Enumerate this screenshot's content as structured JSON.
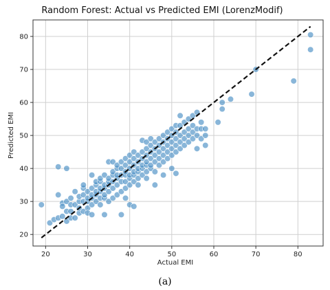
{
  "chart_data": {
    "type": "scatter",
    "title": "Random Forest: Actual vs Predicted EMI (LorenzModif)",
    "xlabel": "Actual EMI",
    "ylabel": "Predicted EMI",
    "xlim": [
      17,
      86
    ],
    "ylim": [
      16.5,
      85
    ],
    "xticks": [
      "20",
      "30",
      "40",
      "50",
      "60",
      "70",
      "80"
    ],
    "yticks": [
      "20",
      "30",
      "40",
      "50",
      "60",
      "70",
      "80"
    ],
    "grid": true,
    "reference_line": {
      "style": "dashed",
      "color": "#111111",
      "from": [
        19,
        19
      ],
      "to": [
        83,
        83
      ]
    },
    "point_color": "#4a8fc4",
    "points": [
      [
        19,
        29
      ],
      [
        21,
        23.5
      ],
      [
        22,
        24.5
      ],
      [
        23,
        25
      ],
      [
        23,
        32
      ],
      [
        23,
        40.5
      ],
      [
        24,
        25.5
      ],
      [
        24,
        29.5
      ],
      [
        24,
        28.5
      ],
      [
        25,
        24
      ],
      [
        25,
        27
      ],
      [
        25,
        30
      ],
      [
        25,
        40
      ],
      [
        26,
        25
      ],
      [
        26,
        27
      ],
      [
        26,
        29
      ],
      [
        26,
        31
      ],
      [
        27,
        25
      ],
      [
        27,
        29
      ],
      [
        27,
        33
      ],
      [
        28,
        26.5
      ],
      [
        28,
        30
      ],
      [
        28,
        31.5
      ],
      [
        28,
        28
      ],
      [
        29,
        27
      ],
      [
        29,
        30
      ],
      [
        29,
        32
      ],
      [
        29,
        34
      ],
      [
        29,
        35
      ],
      [
        30,
        28
      ],
      [
        30,
        30
      ],
      [
        30,
        31
      ],
      [
        30,
        33
      ],
      [
        30,
        26.5
      ],
      [
        31,
        29
      ],
      [
        31,
        31
      ],
      [
        31,
        32
      ],
      [
        31,
        34
      ],
      [
        31,
        38
      ],
      [
        31,
        26
      ],
      [
        32,
        30
      ],
      [
        32,
        32
      ],
      [
        32,
        33
      ],
      [
        32,
        35
      ],
      [
        32,
        36
      ],
      [
        33,
        29
      ],
      [
        33,
        31
      ],
      [
        33,
        33
      ],
      [
        33,
        34
      ],
      [
        33,
        36
      ],
      [
        33,
        37
      ],
      [
        34,
        26
      ],
      [
        34,
        31
      ],
      [
        34,
        32
      ],
      [
        34,
        34
      ],
      [
        34,
        35
      ],
      [
        34,
        38
      ],
      [
        35,
        30
      ],
      [
        35,
        33
      ],
      [
        35,
        35
      ],
      [
        35,
        36
      ],
      [
        35,
        37
      ],
      [
        35,
        42
      ],
      [
        36,
        31
      ],
      [
        36,
        34
      ],
      [
        36,
        36
      ],
      [
        36,
        38
      ],
      [
        36,
        39
      ],
      [
        36,
        42
      ],
      [
        37,
        32
      ],
      [
        37,
        35
      ],
      [
        37,
        37
      ],
      [
        37,
        38
      ],
      [
        37,
        40
      ],
      [
        37,
        41
      ],
      [
        38,
        33
      ],
      [
        38,
        36
      ],
      [
        38,
        38
      ],
      [
        38,
        40
      ],
      [
        38,
        42
      ],
      [
        38,
        26
      ],
      [
        39,
        34
      ],
      [
        39,
        36
      ],
      [
        39,
        38
      ],
      [
        39,
        39
      ],
      [
        39,
        41
      ],
      [
        39,
        43
      ],
      [
        39,
        31
      ],
      [
        40,
        35
      ],
      [
        40,
        37
      ],
      [
        40,
        38
      ],
      [
        40,
        40
      ],
      [
        40,
        42
      ],
      [
        40,
        44
      ],
      [
        40,
        29
      ],
      [
        41,
        36
      ],
      [
        41,
        38
      ],
      [
        41,
        39
      ],
      [
        41,
        41
      ],
      [
        41,
        43
      ],
      [
        41,
        45
      ],
      [
        41,
        28.5
      ],
      [
        42,
        37
      ],
      [
        42,
        39
      ],
      [
        42,
        40
      ],
      [
        42,
        42
      ],
      [
        42,
        44
      ],
      [
        42,
        35
      ],
      [
        43,
        38
      ],
      [
        43,
        40
      ],
      [
        43,
        41
      ],
      [
        43,
        43
      ],
      [
        43,
        45
      ],
      [
        43,
        48.5
      ],
      [
        44,
        39
      ],
      [
        44,
        41
      ],
      [
        44,
        42
      ],
      [
        44,
        44
      ],
      [
        44,
        46
      ],
      [
        44,
        48
      ],
      [
        44,
        37
      ],
      [
        45,
        40
      ],
      [
        45,
        41
      ],
      [
        45,
        43
      ],
      [
        45,
        45
      ],
      [
        45,
        47
      ],
      [
        45,
        49
      ],
      [
        46,
        39
      ],
      [
        46,
        42
      ],
      [
        46,
        44
      ],
      [
        46,
        46
      ],
      [
        46,
        48
      ],
      [
        46,
        35
      ],
      [
        47,
        41
      ],
      [
        47,
        43
      ],
      [
        47,
        45
      ],
      [
        47,
        47
      ],
      [
        47,
        49
      ],
      [
        48,
        42
      ],
      [
        48,
        44
      ],
      [
        48,
        46
      ],
      [
        48,
        48
      ],
      [
        48,
        50
      ],
      [
        48,
        38
      ],
      [
        49,
        43
      ],
      [
        49,
        45
      ],
      [
        49,
        47
      ],
      [
        49,
        49
      ],
      [
        49,
        51
      ],
      [
        50,
        44
      ],
      [
        50,
        46
      ],
      [
        50,
        48
      ],
      [
        50,
        50
      ],
      [
        50,
        52
      ],
      [
        50,
        40
      ],
      [
        51,
        45
      ],
      [
        51,
        47
      ],
      [
        51,
        49
      ],
      [
        51,
        51
      ],
      [
        51,
        53
      ],
      [
        51,
        38.5
      ],
      [
        52,
        46
      ],
      [
        52,
        48
      ],
      [
        52,
        50
      ],
      [
        52,
        53
      ],
      [
        52,
        56
      ],
      [
        53,
        47
      ],
      [
        53,
        49
      ],
      [
        53,
        51
      ],
      [
        53,
        54
      ],
      [
        54,
        48
      ],
      [
        54,
        50
      ],
      [
        54,
        52
      ],
      [
        54,
        55
      ],
      [
        55,
        49
      ],
      [
        55,
        51
      ],
      [
        55,
        53
      ],
      [
        55,
        56
      ],
      [
        56,
        46
      ],
      [
        56,
        50
      ],
      [
        56,
        52
      ],
      [
        56,
        57
      ],
      [
        57,
        49
      ],
      [
        57,
        52
      ],
      [
        57,
        54
      ],
      [
        58,
        47
      ],
      [
        58,
        50
      ],
      [
        58,
        52
      ],
      [
        61,
        54
      ],
      [
        62,
        58
      ],
      [
        62,
        60
      ],
      [
        64,
        61
      ],
      [
        69,
        62.5
      ],
      [
        70,
        70
      ],
      [
        79,
        66.5
      ],
      [
        83,
        80.5
      ],
      [
        83,
        76
      ]
    ]
  },
  "figure_caption": "(a)"
}
